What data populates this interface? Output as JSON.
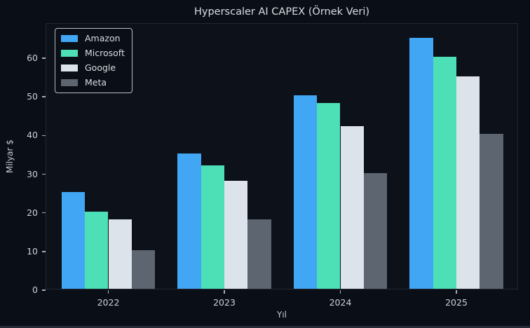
{
  "chart_data": {
    "type": "bar",
    "title": "Hyperscaler AI CAPEX (Örnek Veri)",
    "xlabel": "Yıl",
    "ylabel": "Milyar $",
    "categories": [
      "2022",
      "2023",
      "2024",
      "2025"
    ],
    "series": [
      {
        "name": "Amazon",
        "color": "#41a6f3",
        "values": [
          25,
          35,
          50,
          65
        ]
      },
      {
        "name": "Microsoft",
        "color": "#4de0b7",
        "values": [
          20,
          32,
          48,
          60
        ]
      },
      {
        "name": "Google",
        "color": "#dde3ea",
        "values": [
          18,
          28,
          42,
          55
        ]
      },
      {
        "name": "Meta",
        "color": "#5d6571",
        "values": [
          10,
          18,
          30,
          40
        ]
      }
    ],
    "yticks": [
      0,
      10,
      20,
      30,
      40,
      50,
      60
    ],
    "ylim": [
      0,
      68.9
    ],
    "grid": false,
    "legend_position": "upper left",
    "background": "#0a0e16",
    "plot_background": "#0d1119"
  }
}
